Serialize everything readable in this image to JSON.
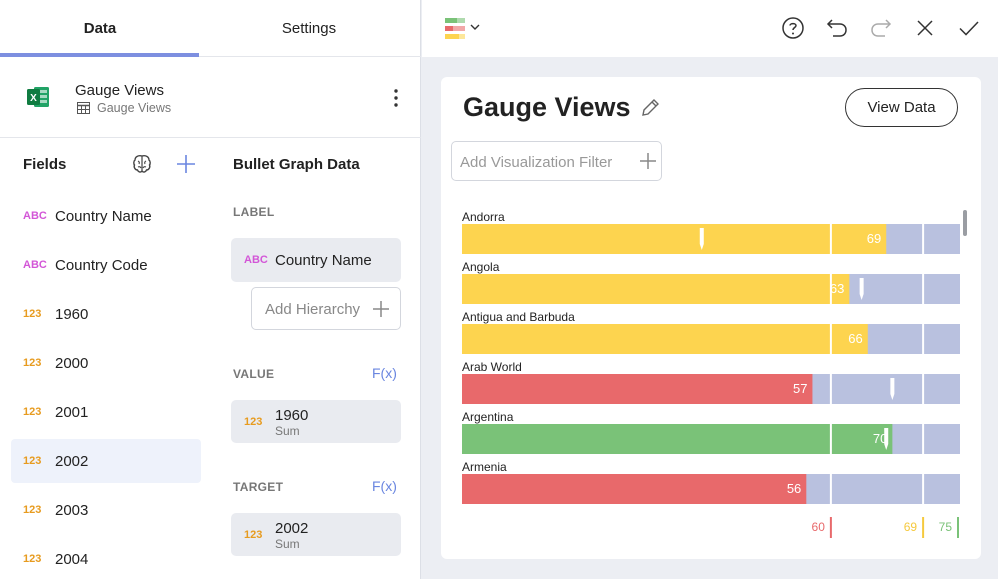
{
  "tabs": {
    "data": "Data",
    "settings": "Settings"
  },
  "source": {
    "title": "Gauge Views",
    "subtitle": "Gauge Views",
    "icon": "excel-icon"
  },
  "fields": {
    "heading": "Fields",
    "items": [
      {
        "type": "ABC",
        "name": "Country Name"
      },
      {
        "type": "ABC",
        "name": "Country Code"
      },
      {
        "type": "123",
        "name": "1960"
      },
      {
        "type": "123",
        "name": "2000"
      },
      {
        "type": "123",
        "name": "2001"
      },
      {
        "type": "123",
        "name": "2002"
      },
      {
        "type": "123",
        "name": "2003"
      },
      {
        "type": "123",
        "name": "2004"
      }
    ],
    "selected_index": 5
  },
  "bullet": {
    "heading": "Bullet Graph Data",
    "label_section": "LABEL",
    "label_field": {
      "type": "ABC",
      "name": "Country Name"
    },
    "add_hierarchy": "Add Hierarchy",
    "value_section": "VALUE",
    "value_fx": "F(x)",
    "value_field": {
      "type": "123",
      "name": "1960",
      "agg": "Sum"
    },
    "target_section": "TARGET",
    "target_fx": "F(x)",
    "target_field": {
      "type": "123",
      "name": "2002",
      "agg": "Sum"
    }
  },
  "toolbar": {
    "icons": [
      "bullet-graph-icon",
      "help-icon",
      "undo-icon",
      "redo-icon",
      "close-icon",
      "check-icon"
    ]
  },
  "visualization": {
    "title": "Gauge Views",
    "view_data": "View Data",
    "filter_placeholder": "Add Visualization Filter"
  },
  "chart_data": {
    "type": "bullet",
    "axis_max": 81,
    "bands": [
      60,
      75
    ],
    "band_labels": [
      "60",
      "69",
      "75"
    ],
    "colors": {
      "red": "#e8696b",
      "yellow": "#fdd44f",
      "green": "#7ac278",
      "background": "#b9c1df",
      "label_red": "#e8696b",
      "label_yellow": "#f5c93d",
      "label_green": "#7ac278"
    },
    "rows": [
      {
        "label": "Andorra",
        "value": 69,
        "target": 39,
        "color": "yellow"
      },
      {
        "label": "Angola",
        "value": 63,
        "target": 65,
        "color": "yellow"
      },
      {
        "label": "Antigua and Barbuda",
        "value": 66,
        "target": 0,
        "color": "yellow"
      },
      {
        "label": "Arab World",
        "value": 57,
        "target": 70,
        "color": "red"
      },
      {
        "label": "Argentina",
        "value": 70,
        "target": 69,
        "color": "green"
      },
      {
        "label": "Armenia",
        "value": 56,
        "target": 0,
        "color": "red"
      }
    ]
  }
}
